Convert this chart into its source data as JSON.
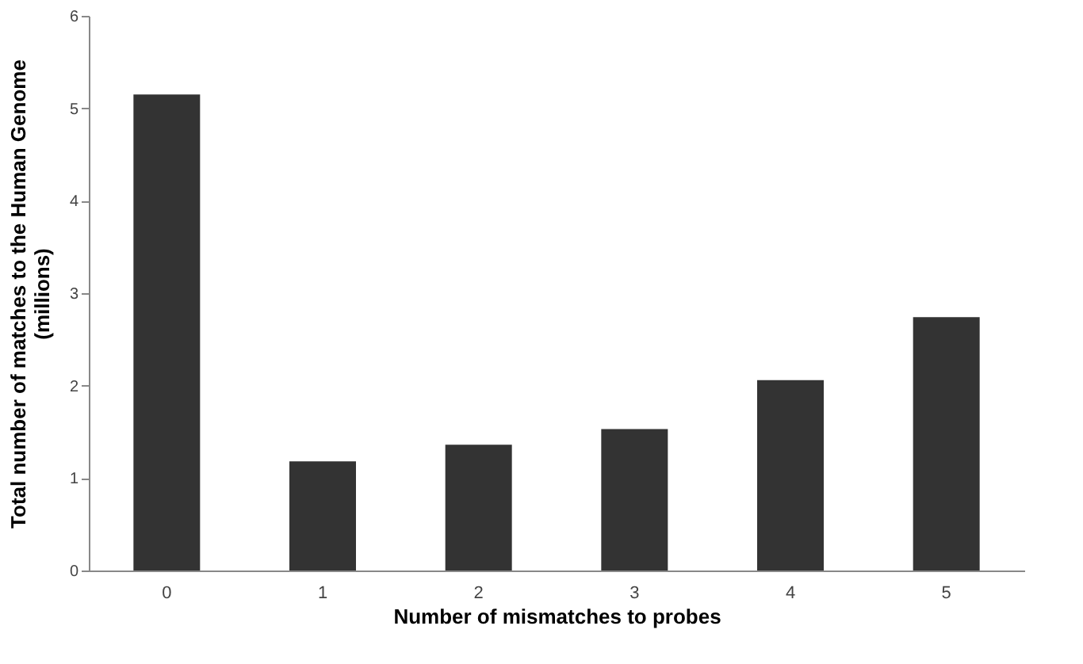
{
  "chart_data": {
    "type": "bar",
    "xlabel": "Number of  mismatches to probes",
    "ylabel": [
      "Total number of matches to the Human Genome",
      "(millions)"
    ],
    "categories": [
      "0",
      "1",
      "2",
      "3",
      "4",
      "5"
    ],
    "values": [
      5.15,
      1.18,
      1.36,
      1.53,
      2.06,
      2.74
    ],
    "color": "#333333",
    "ylim": [
      0,
      6
    ],
    "yticks": [
      0,
      1,
      2,
      3,
      4,
      5,
      6
    ],
    "grid": false
  }
}
